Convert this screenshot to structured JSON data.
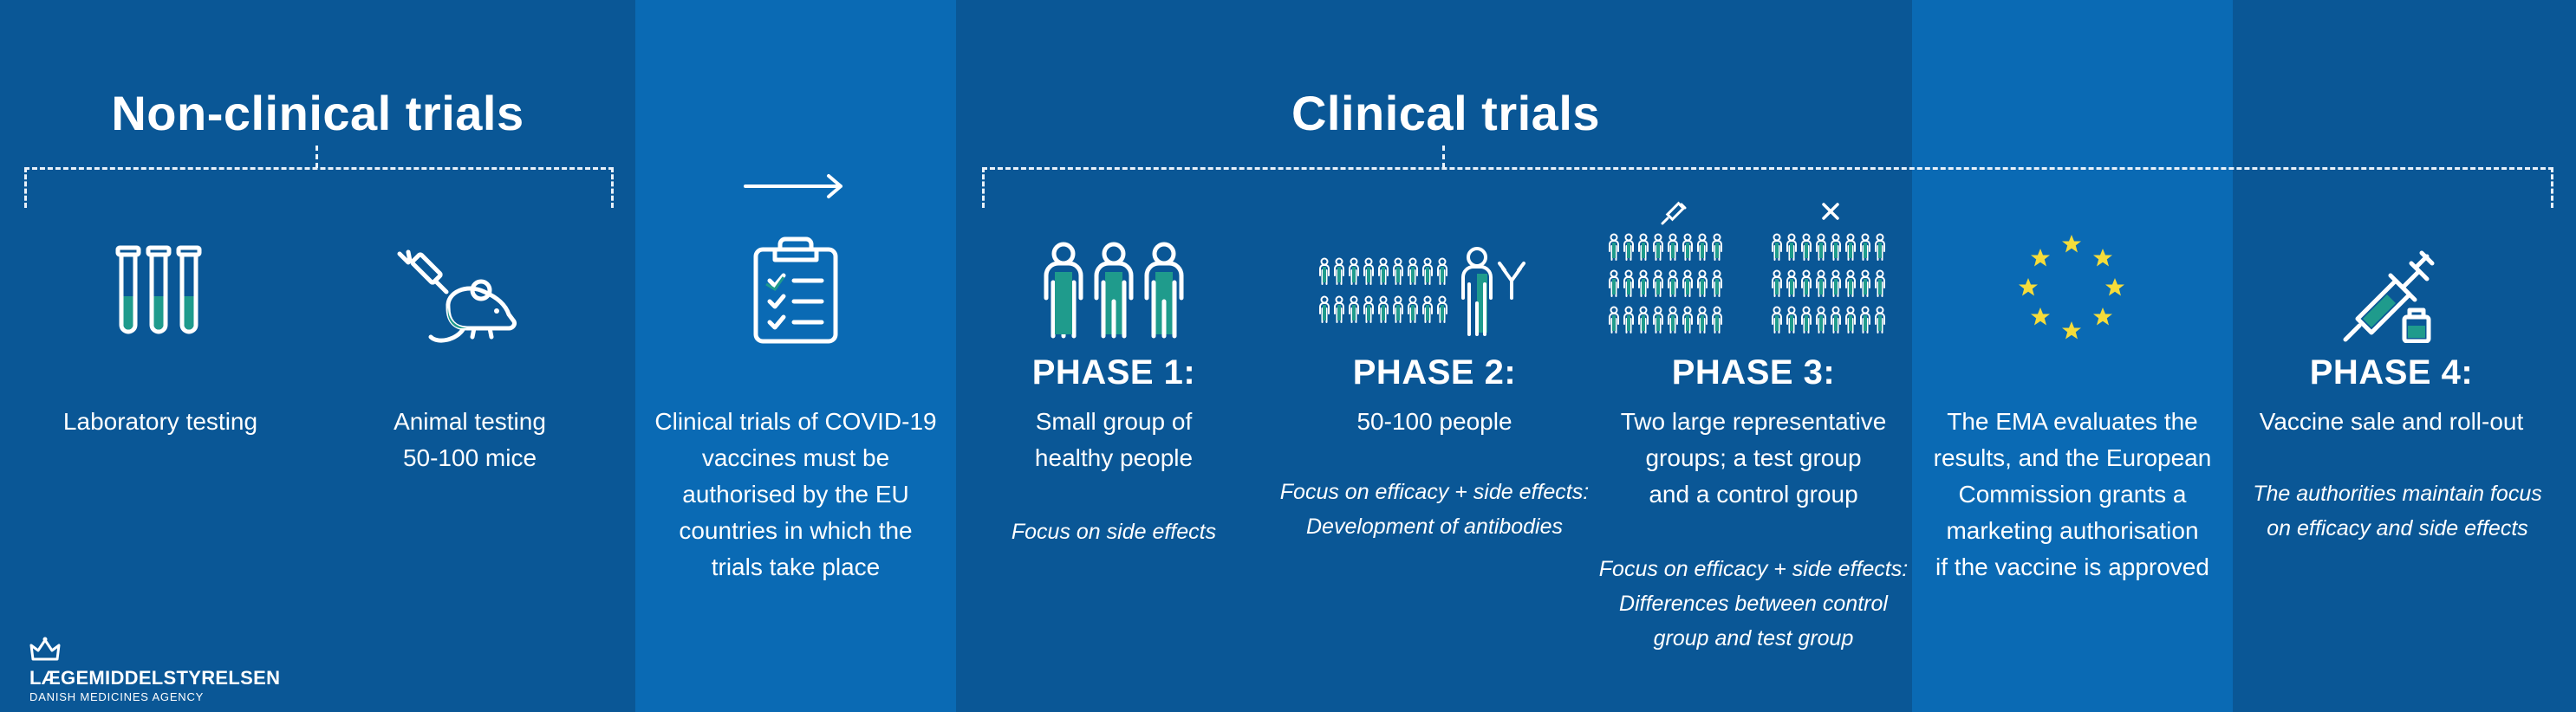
{
  "headings": {
    "non_clinical": "Non-clinical trials",
    "clinical": "Clinical trials"
  },
  "columns": {
    "lab": {
      "label": "Laboratory testing",
      "icon": "test-tubes-icon"
    },
    "animal": {
      "label_line1": "Animal testing",
      "label_line2": "50-100 mice",
      "icon": "mouse-syringe-icon"
    },
    "authorisation": {
      "icon": "clipboard-checklist-icon",
      "arrow": "arrow-right-icon",
      "lines": [
        "Clinical trials of COVID-19",
        "vaccines must be",
        "authorised by the EU",
        "countries in which the",
        "trials take place"
      ]
    },
    "phase1": {
      "title": "PHASE 1:",
      "icon": "three-people-icon",
      "lines": [
        "Small group of",
        "healthy people"
      ],
      "note": [
        "Focus on side effects"
      ]
    },
    "phase2": {
      "title": "PHASE 2:",
      "icon": "group-antibody-icon",
      "lines": [
        "50-100 people"
      ],
      "note": [
        "Focus on efficacy + side effects:",
        "Development of antibodies"
      ]
    },
    "phase3": {
      "title": "PHASE 3:",
      "icon": "two-groups-icon",
      "lines": [
        "Two large representative",
        "groups; a test group",
        "and a control group"
      ],
      "note": [
        "Focus on efficacy + side effects:",
        "Differences between control",
        "group and test group"
      ]
    },
    "ema": {
      "icon": "eu-stars-icon",
      "lines": [
        "The EMA evaluates the",
        "results, and the European",
        "Commission grants a",
        "marketing authorisation",
        "if the vaccine is approved"
      ]
    },
    "phase4": {
      "title": "PHASE 4:",
      "icon": "syringe-vial-icon",
      "lines": [
        "Vaccine sale and roll-out"
      ],
      "note": [
        "The authorities maintain focus",
        "on efficacy and side effects"
      ]
    }
  },
  "logo": {
    "name": "LÆGEMIDDELSTYRELSEN",
    "subtitle": "DANISH MEDICINES AGENCY",
    "icon": "crown-icon"
  },
  "colors": {
    "band_dark": "#0a5796",
    "band_light": "#0a6ab4",
    "accent_teal": "#1f9b8c",
    "eu_star": "#f5dc3a",
    "text": "#ffffff"
  }
}
